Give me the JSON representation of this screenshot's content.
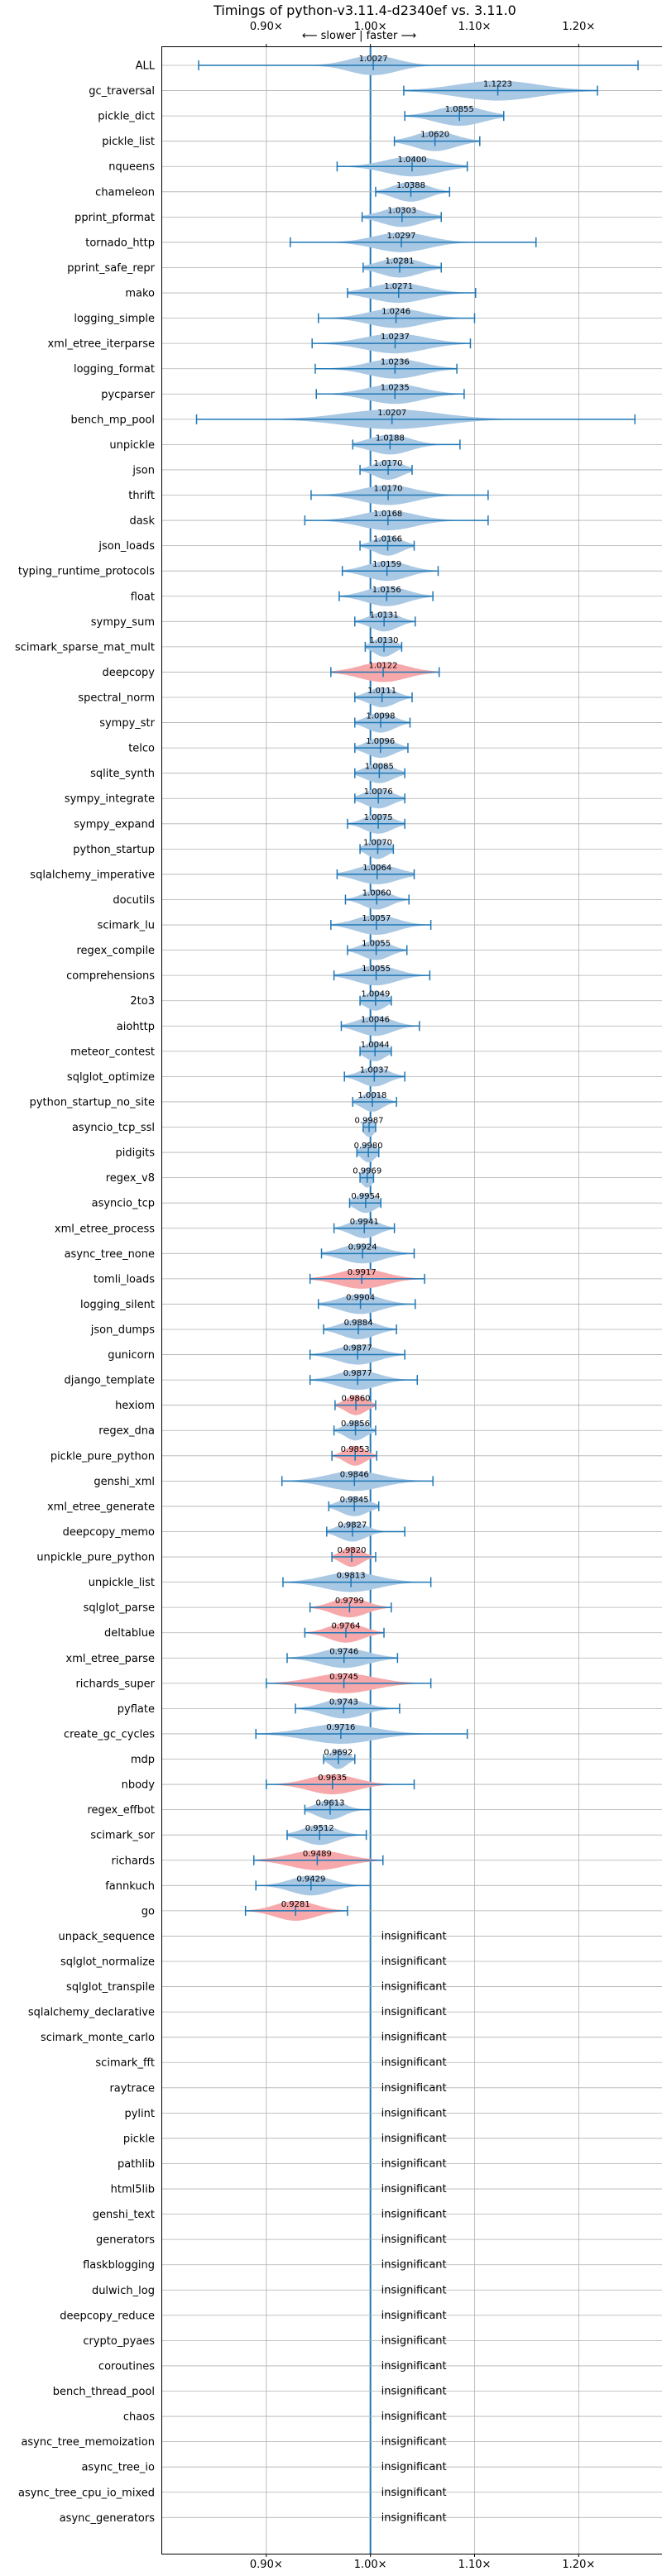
{
  "chart_data": {
    "type": "violin",
    "title": "Timings of python-v3.11.4-d2340ef vs. 3.11.0",
    "direction_label": "⟵ slower | faster ⟶",
    "x_ticks": [
      {
        "value": 0.9,
        "label": "0.90×"
      },
      {
        "value": 1.0,
        "label": "1.00×"
      },
      {
        "value": 1.1,
        "label": "1.10×"
      },
      {
        "value": 1.2,
        "label": "1.20×"
      }
    ],
    "xlim": [
      0.8,
      1.28
    ],
    "reference_line": 1.0,
    "grid": true,
    "colors": {
      "faster": "#a9c8e4",
      "slower": "#f7a8aa",
      "line": "#1f77b4",
      "grid": "#b0b0b0"
    },
    "insignificant_label": "insignificant",
    "benchmarks": [
      {
        "name": "ALL",
        "value": 1.0027,
        "min": 0.835,
        "max": 1.257,
        "spread": 0.035,
        "status": "faster"
      },
      {
        "name": "gc_traversal",
        "value": 1.1223,
        "min": 1.032,
        "max": 1.218,
        "spread": 0.06,
        "status": "faster"
      },
      {
        "name": "pickle_dict",
        "value": 1.0855,
        "min": 1.033,
        "max": 1.128,
        "spread": 0.035,
        "status": "faster"
      },
      {
        "name": "pickle_list",
        "value": 1.062,
        "min": 1.023,
        "max": 1.105,
        "spread": 0.03,
        "status": "faster"
      },
      {
        "name": "nqueens",
        "value": 1.04,
        "min": 0.968,
        "max": 1.093,
        "spread": 0.04,
        "status": "faster"
      },
      {
        "name": "chameleon",
        "value": 1.0388,
        "min": 1.005,
        "max": 1.076,
        "spread": 0.025,
        "status": "faster"
      },
      {
        "name": "pprint_pformat",
        "value": 1.0303,
        "min": 0.992,
        "max": 1.068,
        "spread": 0.03,
        "status": "faster"
      },
      {
        "name": "tornado_http",
        "value": 1.0297,
        "min": 0.923,
        "max": 1.159,
        "spread": 0.04,
        "status": "faster"
      },
      {
        "name": "pprint_safe_repr",
        "value": 1.0281,
        "min": 0.993,
        "max": 1.068,
        "spread": 0.03,
        "status": "faster"
      },
      {
        "name": "mako",
        "value": 1.0271,
        "min": 0.978,
        "max": 1.101,
        "spread": 0.04,
        "status": "faster"
      },
      {
        "name": "logging_simple",
        "value": 1.0246,
        "min": 0.95,
        "max": 1.1,
        "spread": 0.04,
        "status": "faster"
      },
      {
        "name": "xml_etree_iterparse",
        "value": 1.0237,
        "min": 0.944,
        "max": 1.096,
        "spread": 0.045,
        "status": "faster"
      },
      {
        "name": "logging_format",
        "value": 1.0236,
        "min": 0.947,
        "max": 1.083,
        "spread": 0.04,
        "status": "faster"
      },
      {
        "name": "pycparser",
        "value": 1.0235,
        "min": 0.948,
        "max": 1.09,
        "spread": 0.04,
        "status": "faster"
      },
      {
        "name": "bench_mp_pool",
        "value": 1.0207,
        "min": 0.833,
        "max": 1.254,
        "spread": 0.07,
        "status": "faster"
      },
      {
        "name": "unpickle",
        "value": 1.0188,
        "min": 0.983,
        "max": 1.086,
        "spread": 0.03,
        "status": "faster"
      },
      {
        "name": "json",
        "value": 1.017,
        "min": 0.99,
        "max": 1.04,
        "spread": 0.02,
        "status": "faster"
      },
      {
        "name": "thrift",
        "value": 1.017,
        "min": 0.943,
        "max": 1.113,
        "spread": 0.04,
        "status": "faster"
      },
      {
        "name": "dask",
        "value": 1.0168,
        "min": 0.937,
        "max": 1.113,
        "spread": 0.04,
        "status": "faster"
      },
      {
        "name": "json_loads",
        "value": 1.0166,
        "min": 0.99,
        "max": 1.042,
        "spread": 0.02,
        "status": "faster"
      },
      {
        "name": "typing_runtime_protocols",
        "value": 1.0159,
        "min": 0.973,
        "max": 1.065,
        "spread": 0.03,
        "status": "faster"
      },
      {
        "name": "float",
        "value": 1.0156,
        "min": 0.97,
        "max": 1.06,
        "spread": 0.03,
        "status": "faster"
      },
      {
        "name": "sympy_sum",
        "value": 1.0131,
        "min": 0.985,
        "max": 1.043,
        "spread": 0.02,
        "status": "faster"
      },
      {
        "name": "scimark_sparse_mat_mult",
        "value": 1.013,
        "min": 0.995,
        "max": 1.03,
        "spread": 0.015,
        "status": "faster"
      },
      {
        "name": "deepcopy",
        "value": 1.0122,
        "min": 0.962,
        "max": 1.066,
        "spread": 0.035,
        "status": "slower"
      },
      {
        "name": "spectral_norm",
        "value": 1.0111,
        "min": 0.985,
        "max": 1.04,
        "spread": 0.02,
        "status": "faster"
      },
      {
        "name": "sympy_str",
        "value": 1.0098,
        "min": 0.985,
        "max": 1.038,
        "spread": 0.02,
        "status": "faster"
      },
      {
        "name": "telco",
        "value": 1.0096,
        "min": 0.985,
        "max": 1.036,
        "spread": 0.02,
        "status": "faster"
      },
      {
        "name": "sqlite_synth",
        "value": 1.0085,
        "min": 0.985,
        "max": 1.033,
        "spread": 0.02,
        "status": "faster"
      },
      {
        "name": "sympy_integrate",
        "value": 1.0076,
        "min": 0.985,
        "max": 1.033,
        "spread": 0.02,
        "status": "faster"
      },
      {
        "name": "sympy_expand",
        "value": 1.0075,
        "min": 0.978,
        "max": 1.033,
        "spread": 0.02,
        "status": "faster"
      },
      {
        "name": "python_startup",
        "value": 1.007,
        "min": 0.99,
        "max": 1.022,
        "spread": 0.015,
        "status": "faster"
      },
      {
        "name": "sqlalchemy_imperative",
        "value": 1.0064,
        "min": 0.968,
        "max": 1.042,
        "spread": 0.03,
        "status": "faster"
      },
      {
        "name": "docutils",
        "value": 1.006,
        "min": 0.976,
        "max": 1.037,
        "spread": 0.02,
        "status": "faster"
      },
      {
        "name": "scimark_lu",
        "value": 1.0057,
        "min": 0.962,
        "max": 1.058,
        "spread": 0.03,
        "status": "faster"
      },
      {
        "name": "regex_compile",
        "value": 1.0055,
        "min": 0.978,
        "max": 1.035,
        "spread": 0.02,
        "status": "faster"
      },
      {
        "name": "comprehensions",
        "value": 1.0055,
        "min": 0.965,
        "max": 1.057,
        "spread": 0.03,
        "status": "faster"
      },
      {
        "name": "2to3",
        "value": 1.0049,
        "min": 0.99,
        "max": 1.02,
        "spread": 0.015,
        "status": "faster"
      },
      {
        "name": "aiohttp",
        "value": 1.0046,
        "min": 0.972,
        "max": 1.047,
        "spread": 0.025,
        "status": "faster"
      },
      {
        "name": "meteor_contest",
        "value": 1.0044,
        "min": 0.99,
        "max": 1.02,
        "spread": 0.015,
        "status": "faster"
      },
      {
        "name": "sqlglot_optimize",
        "value": 1.0037,
        "min": 0.975,
        "max": 1.033,
        "spread": 0.02,
        "status": "faster"
      },
      {
        "name": "python_startup_no_site",
        "value": 1.0018,
        "min": 0.983,
        "max": 1.025,
        "spread": 0.015,
        "status": "faster"
      },
      {
        "name": "asyncio_tcp_ssl",
        "value": 0.9987,
        "min": 0.993,
        "max": 1.005,
        "spread": 0.008,
        "status": "faster"
      },
      {
        "name": "pidigits",
        "value": 0.998,
        "min": 0.987,
        "max": 1.008,
        "spread": 0.01,
        "status": "faster"
      },
      {
        "name": "regex_v8",
        "value": 0.9969,
        "min": 0.99,
        "max": 1.003,
        "spread": 0.008,
        "status": "faster"
      },
      {
        "name": "asyncio_tcp",
        "value": 0.9954,
        "min": 0.98,
        "max": 1.01,
        "spread": 0.015,
        "status": "faster"
      },
      {
        "name": "xml_etree_process",
        "value": 0.9941,
        "min": 0.965,
        "max": 1.023,
        "spread": 0.02,
        "status": "faster"
      },
      {
        "name": "async_tree_none",
        "value": 0.9924,
        "min": 0.953,
        "max": 1.042,
        "spread": 0.03,
        "status": "faster"
      },
      {
        "name": "tomli_loads",
        "value": 0.9917,
        "min": 0.942,
        "max": 1.052,
        "spread": 0.035,
        "status": "slower"
      },
      {
        "name": "logging_silent",
        "value": 0.9904,
        "min": 0.95,
        "max": 1.043,
        "spread": 0.03,
        "status": "faster"
      },
      {
        "name": "json_dumps",
        "value": 0.9884,
        "min": 0.955,
        "max": 1.025,
        "spread": 0.025,
        "status": "faster"
      },
      {
        "name": "gunicorn",
        "value": 0.9877,
        "min": 0.942,
        "max": 1.033,
        "spread": 0.03,
        "status": "faster"
      },
      {
        "name": "django_template",
        "value": 0.9877,
        "min": 0.942,
        "max": 1.045,
        "spread": 0.03,
        "status": "faster"
      },
      {
        "name": "hexiom",
        "value": 0.986,
        "min": 0.966,
        "max": 1.005,
        "spread": 0.015,
        "status": "slower"
      },
      {
        "name": "regex_dna",
        "value": 0.9856,
        "min": 0.965,
        "max": 1.005,
        "spread": 0.015,
        "status": "faster"
      },
      {
        "name": "pickle_pure_python",
        "value": 0.9853,
        "min": 0.963,
        "max": 1.006,
        "spread": 0.015,
        "status": "slower"
      },
      {
        "name": "genshi_xml",
        "value": 0.9846,
        "min": 0.915,
        "max": 1.06,
        "spread": 0.04,
        "status": "faster"
      },
      {
        "name": "xml_etree_generate",
        "value": 0.9845,
        "min": 0.96,
        "max": 1.008,
        "spread": 0.02,
        "status": "faster"
      },
      {
        "name": "deepcopy_memo",
        "value": 0.9827,
        "min": 0.958,
        "max": 1.033,
        "spread": 0.02,
        "status": "faster"
      },
      {
        "name": "unpickle_pure_python",
        "value": 0.982,
        "min": 0.963,
        "max": 1.005,
        "spread": 0.015,
        "status": "slower"
      },
      {
        "name": "unpickle_list",
        "value": 0.9813,
        "min": 0.916,
        "max": 1.058,
        "spread": 0.04,
        "status": "faster"
      },
      {
        "name": "sqlglot_parse",
        "value": 0.9799,
        "min": 0.942,
        "max": 1.02,
        "spread": 0.025,
        "status": "slower"
      },
      {
        "name": "deltablue",
        "value": 0.9764,
        "min": 0.937,
        "max": 1.013,
        "spread": 0.025,
        "status": "slower"
      },
      {
        "name": "xml_etree_parse",
        "value": 0.9746,
        "min": 0.92,
        "max": 1.026,
        "spread": 0.035,
        "status": "faster"
      },
      {
        "name": "richards_super",
        "value": 0.9745,
        "min": 0.9,
        "max": 1.058,
        "spread": 0.045,
        "status": "slower"
      },
      {
        "name": "pyflate",
        "value": 0.9743,
        "min": 0.928,
        "max": 1.028,
        "spread": 0.03,
        "status": "faster"
      },
      {
        "name": "create_gc_cycles",
        "value": 0.9716,
        "min": 0.89,
        "max": 1.093,
        "spread": 0.05,
        "status": "faster"
      },
      {
        "name": "mdp",
        "value": 0.9692,
        "min": 0.955,
        "max": 0.985,
        "spread": 0.012,
        "status": "faster"
      },
      {
        "name": "nbody",
        "value": 0.9635,
        "min": 0.9,
        "max": 1.042,
        "spread": 0.035,
        "status": "slower"
      },
      {
        "name": "regex_effbot",
        "value": 0.9613,
        "min": 0.937,
        "max": 1.0,
        "spread": 0.02,
        "status": "faster"
      },
      {
        "name": "scimark_sor",
        "value": 0.9512,
        "min": 0.92,
        "max": 0.996,
        "spread": 0.025,
        "status": "faster"
      },
      {
        "name": "richards",
        "value": 0.9489,
        "min": 0.888,
        "max": 1.012,
        "spread": 0.04,
        "status": "slower"
      },
      {
        "name": "fannkuch",
        "value": 0.9429,
        "min": 0.89,
        "max": 1.0,
        "spread": 0.03,
        "status": "faster"
      },
      {
        "name": "go",
        "value": 0.9281,
        "min": 0.88,
        "max": 0.978,
        "spread": 0.03,
        "status": "slower"
      },
      {
        "name": "unpack_sequence",
        "status": "insignificant"
      },
      {
        "name": "sqlglot_normalize",
        "status": "insignificant"
      },
      {
        "name": "sqlglot_transpile",
        "status": "insignificant"
      },
      {
        "name": "sqlalchemy_declarative",
        "status": "insignificant"
      },
      {
        "name": "scimark_monte_carlo",
        "status": "insignificant"
      },
      {
        "name": "scimark_fft",
        "status": "insignificant"
      },
      {
        "name": "raytrace",
        "status": "insignificant"
      },
      {
        "name": "pylint",
        "status": "insignificant"
      },
      {
        "name": "pickle",
        "status": "insignificant"
      },
      {
        "name": "pathlib",
        "status": "insignificant"
      },
      {
        "name": "html5lib",
        "status": "insignificant"
      },
      {
        "name": "genshi_text",
        "status": "insignificant"
      },
      {
        "name": "generators",
        "status": "insignificant"
      },
      {
        "name": "flaskblogging",
        "status": "insignificant"
      },
      {
        "name": "dulwich_log",
        "status": "insignificant"
      },
      {
        "name": "deepcopy_reduce",
        "status": "insignificant"
      },
      {
        "name": "crypto_pyaes",
        "status": "insignificant"
      },
      {
        "name": "coroutines",
        "status": "insignificant"
      },
      {
        "name": "bench_thread_pool",
        "status": "insignificant"
      },
      {
        "name": "chaos",
        "status": "insignificant"
      },
      {
        "name": "async_tree_memoization",
        "status": "insignificant"
      },
      {
        "name": "async_tree_io",
        "status": "insignificant"
      },
      {
        "name": "async_tree_cpu_io_mixed",
        "status": "insignificant"
      },
      {
        "name": "async_generators",
        "status": "insignificant"
      }
    ]
  }
}
